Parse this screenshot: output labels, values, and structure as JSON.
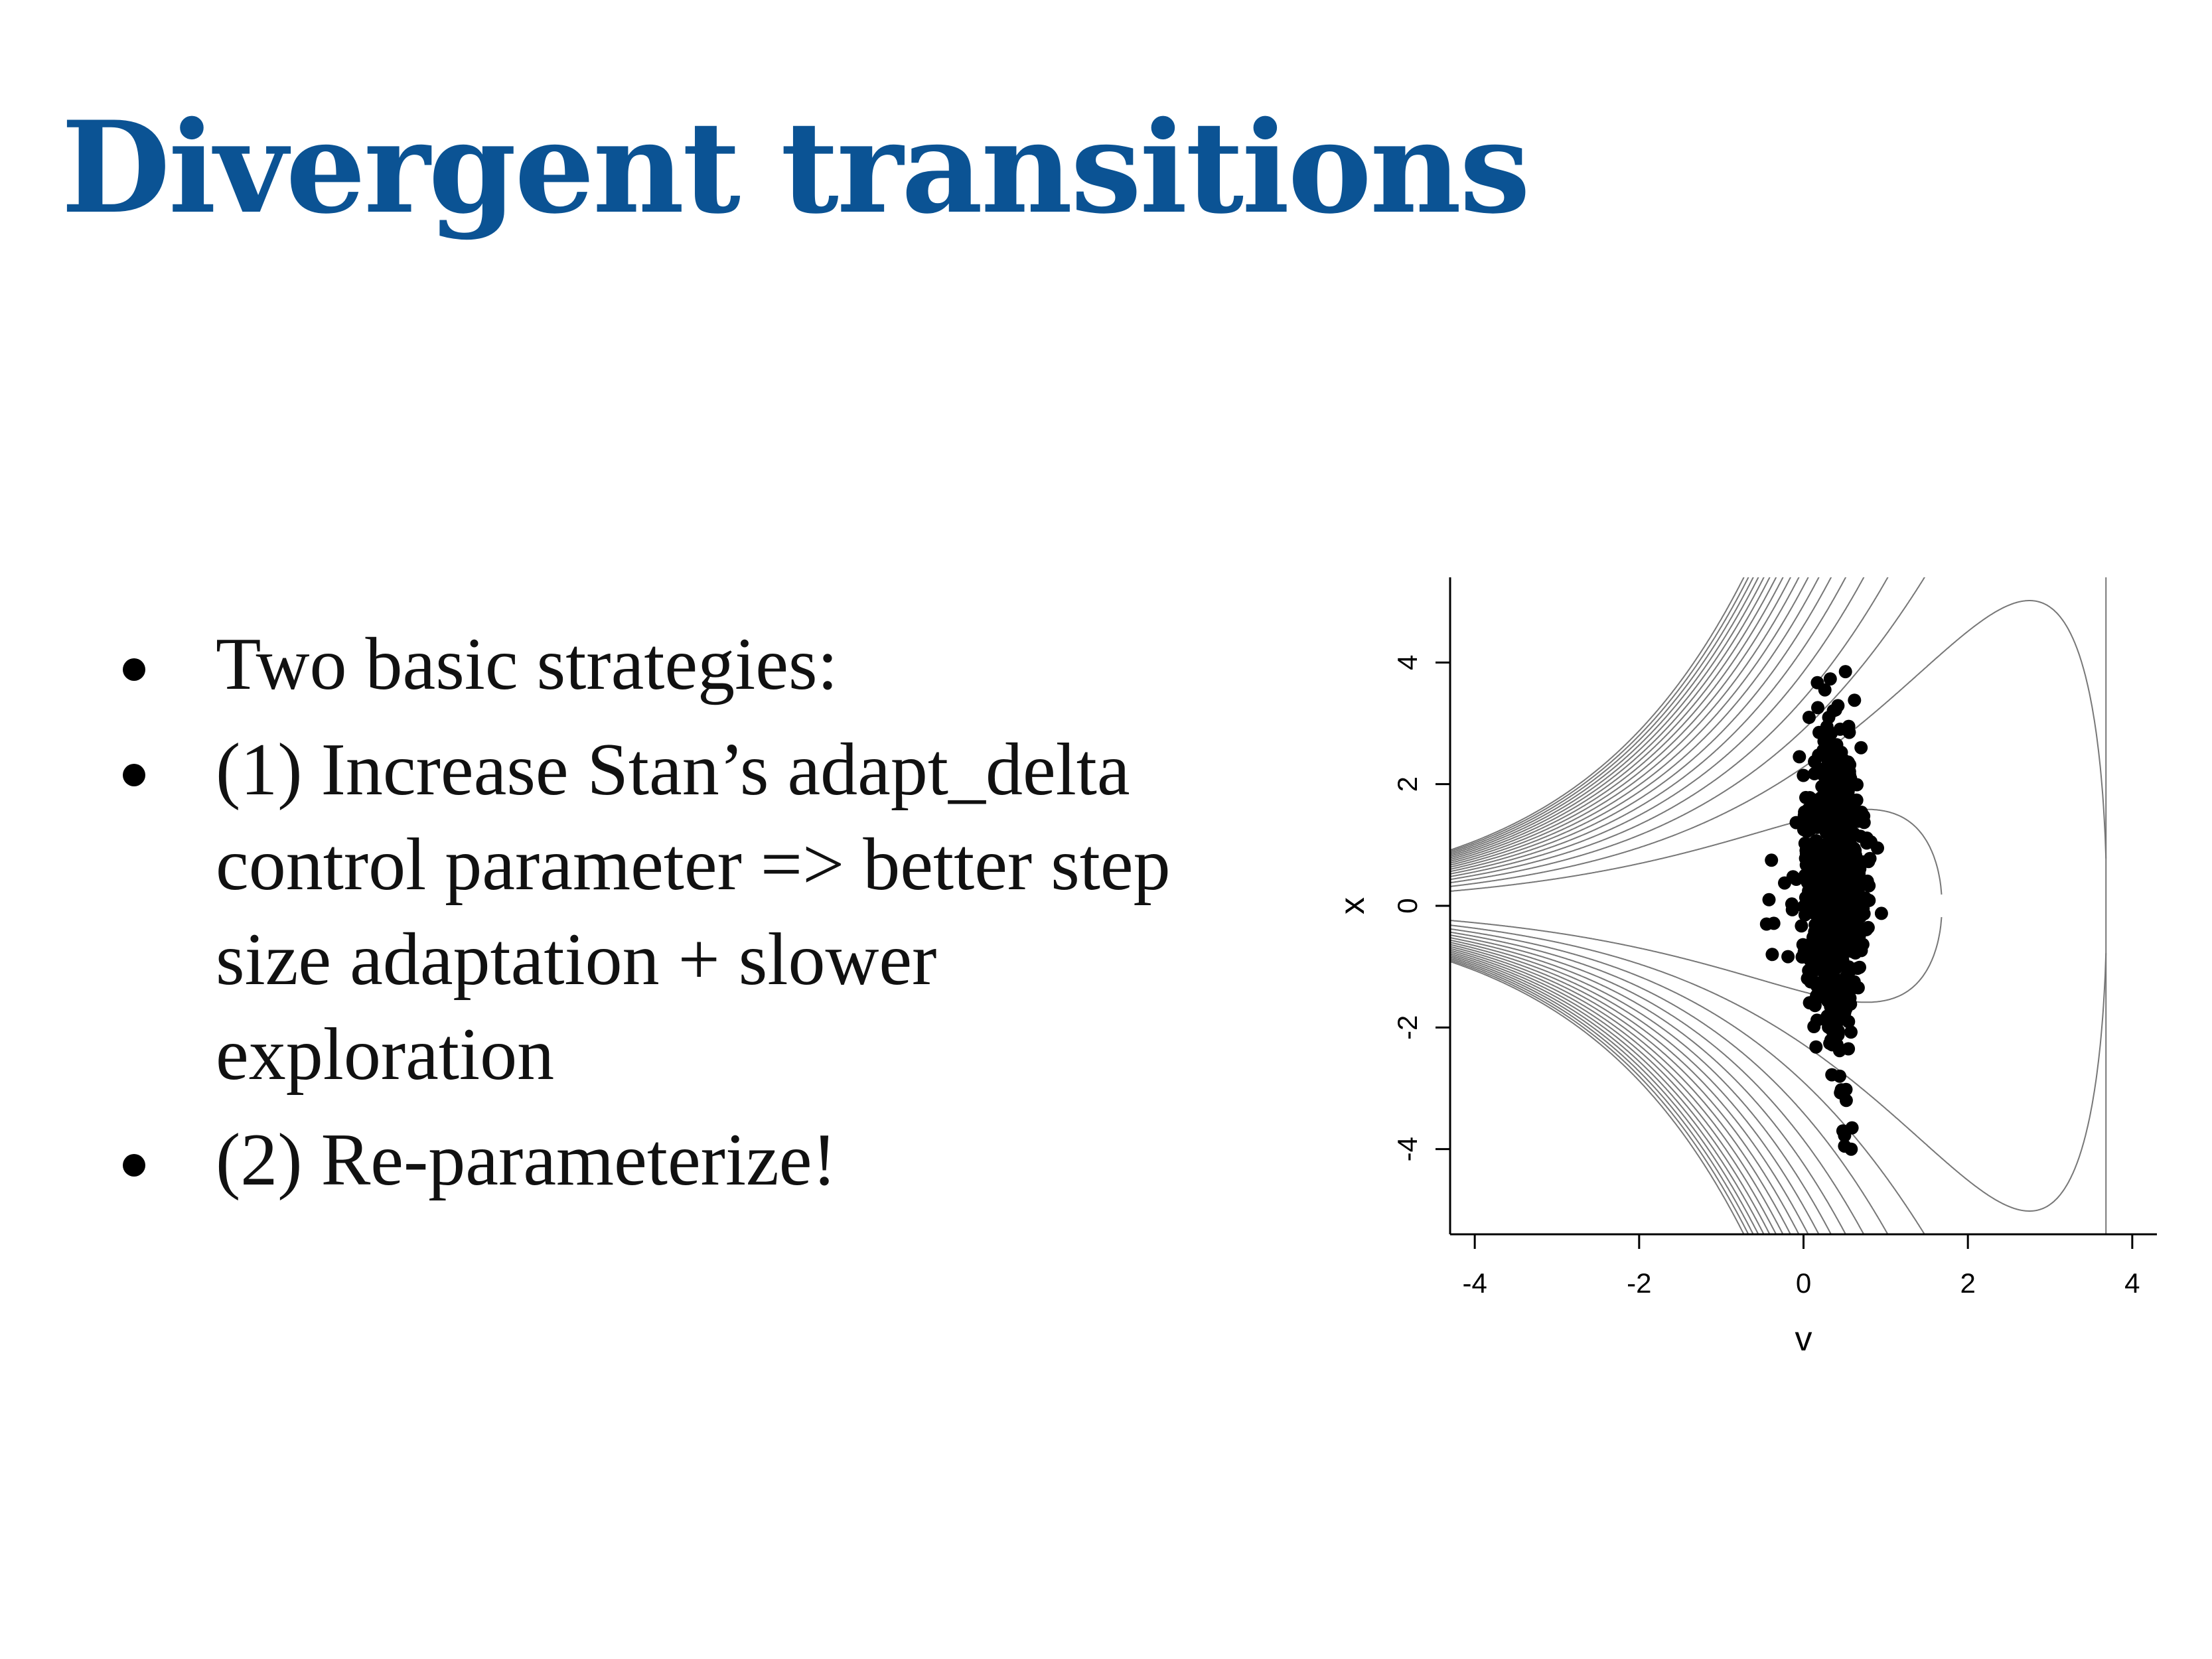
{
  "slide": {
    "title": "Divergent transitions",
    "bullets": [
      "Two basic strategies:",
      "(1) Increase Stan’s adapt_delta control parameter => better step size adaptation + slower exploration",
      "(2) Re-parameterize!"
    ]
  },
  "colors": {
    "title": "#0b5394",
    "text": "#111111",
    "contour": "#777777",
    "points": "#000000"
  },
  "chart_data": {
    "type": "scatter",
    "title": "",
    "xlabel": "v",
    "ylabel": "x",
    "xlim": [
      -4.3,
      4.3
    ],
    "ylim": [
      -5.4,
      5.4
    ],
    "x_ticks": [
      -4,
      -2,
      0,
      2,
      4
    ],
    "y_ticks": [
      -4,
      -2,
      0,
      2,
      4
    ],
    "x_tick_labels": [
      "-4",
      "-2",
      "0",
      "2",
      "4"
    ],
    "y_tick_labels": [
      "-4",
      "-2",
      "0",
      "2",
      "4"
    ],
    "grid": false,
    "legend": "none",
    "overlay": "density contours of a funnel distribution",
    "points_summary": {
      "count": 800,
      "v_center": 0.35,
      "v_spread": 0.2,
      "x_center": 0.4,
      "x_spread": 1.2,
      "x_range": [
        -4.0,
        3.9
      ]
    },
    "series": [
      {
        "values": [
          {
            "v": 0.51,
            "x": 3.85
          },
          {
            "v": 0.26,
            "x": 3.55
          },
          {
            "v": 0.39,
            "x": 3.22
          },
          {
            "v": 0.62,
            "x": 3.38
          },
          {
            "v": 0.19,
            "x": 2.85
          },
          {
            "v": 0.55,
            "x": 2.95
          },
          {
            "v": 0.7,
            "x": 2.6
          },
          {
            "v": -0.05,
            "x": 2.45
          },
          {
            "v": 0.48,
            "x": -3.7
          },
          {
            "v": 0.59,
            "x": -3.65
          },
          {
            "v": 0.5,
            "x": -3.95
          },
          {
            "v": 0.58,
            "x": -4.0
          },
          {
            "v": 0.52,
            "x": -3.2
          },
          {
            "v": 0.44,
            "x": -2.8
          },
          {
            "v": -0.39,
            "x": 0.75
          },
          {
            "v": -0.45,
            "x": -0.3
          },
          {
            "v": -0.38,
            "x": -0.8
          },
          {
            "v": 0.82,
            "x": 1.05
          },
          {
            "v": 0.9,
            "x": 0.95
          },
          {
            "v": -0.42,
            "x": 0.1
          }
        ]
      }
    ]
  }
}
